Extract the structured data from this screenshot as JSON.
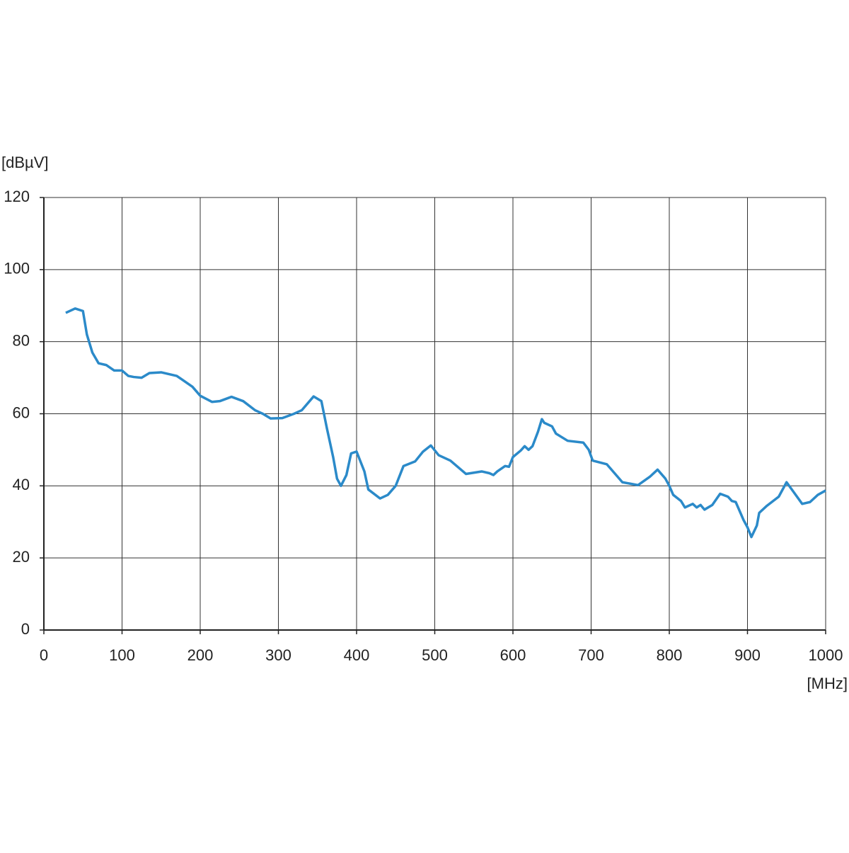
{
  "chart_data": {
    "type": "line",
    "y_label": "[dBµV]",
    "x_label": "[MHz]",
    "xlim": [
      0,
      1000
    ],
    "xticks": [
      0,
      100,
      200,
      300,
      400,
      500,
      600,
      700,
      800,
      900,
      1000
    ],
    "ylim": [
      0,
      120
    ],
    "yticks": [
      0,
      20,
      40,
      60,
      80,
      100,
      120
    ],
    "grid": true,
    "series": [
      {
        "color": "#2b8ac9",
        "x": [
          28,
          40,
          50,
          55,
          62,
          70,
          80,
          90,
          100,
          108,
          115,
          125,
          135,
          150,
          170,
          190,
          200,
          215,
          225,
          240,
          255,
          270,
          280,
          290,
          305,
          320,
          330,
          345,
          355,
          362,
          370,
          375,
          380,
          387,
          393,
          400,
          410,
          415,
          430,
          440,
          450,
          460,
          475,
          485,
          495,
          505,
          520,
          540,
          560,
          570,
          575,
          580,
          590,
          595,
          600,
          610,
          615,
          620,
          625,
          632,
          637,
          640,
          650,
          655,
          670,
          690,
          697,
          702,
          720,
          740,
          760,
          775,
          785,
          795,
          800,
          805,
          815,
          820,
          830,
          835,
          840,
          845,
          855,
          865,
          875,
          880,
          885,
          890,
          895,
          900,
          905,
          912,
          915,
          925,
          940,
          950,
          960,
          970,
          980,
          990,
          1000
        ],
        "values": [
          88,
          89.2,
          88.5,
          82,
          77,
          74,
          73.5,
          72,
          72,
          70.5,
          70.2,
          70,
          71.3,
          71.5,
          70.5,
          67.5,
          65,
          63.3,
          63.5,
          64.7,
          63.5,
          61,
          60,
          58.7,
          58.8,
          60,
          61,
          64.8,
          63.5,
          56,
          48,
          42,
          40,
          43,
          49,
          49.5,
          44,
          39,
          36.5,
          37.5,
          40,
          45.5,
          46.8,
          49.5,
          51.2,
          48.5,
          47,
          43.3,
          44,
          43.5,
          43,
          44,
          45.5,
          45.3,
          48,
          49.8,
          51,
          50,
          51,
          55,
          58.5,
          57.5,
          56.5,
          54.5,
          52.5,
          52,
          50,
          47,
          46,
          41,
          40.2,
          42.5,
          44.5,
          42,
          40,
          37.5,
          35.8,
          34,
          35,
          34,
          34.7,
          33.4,
          34.7,
          37.8,
          37,
          35.8,
          35.5,
          33,
          30.5,
          28.5,
          25.8,
          29,
          32.5,
          34.5,
          37,
          41,
          38,
          35,
          35.5,
          37.5,
          38.7
        ]
      }
    ]
  }
}
